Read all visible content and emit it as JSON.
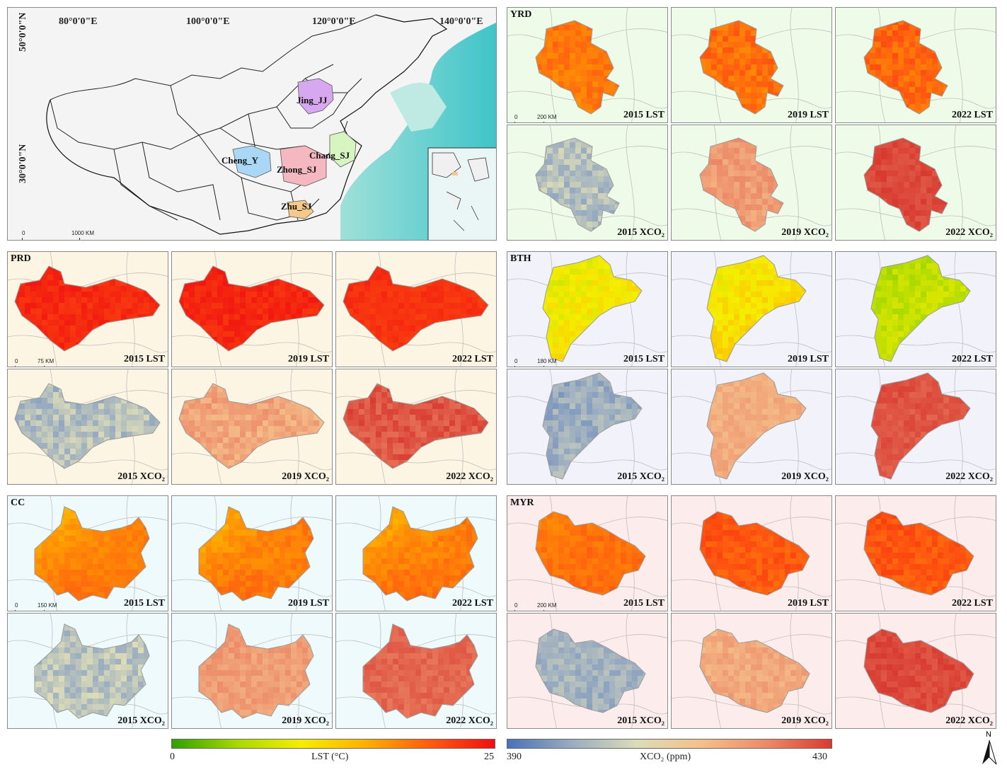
{
  "overview": {
    "lon_labels": [
      "80°0'0\"E",
      "100°0'0\"E",
      "120°0'0\"E",
      "140°0'0\"E"
    ],
    "lat_labels": [
      "50°0'0\"N",
      "30°0'0\"N"
    ],
    "scale": {
      "zero": "0",
      "dist": "1000 KM"
    },
    "cities": [
      {
        "name": "Jing_JJ",
        "color": "#d7a8f0"
      },
      {
        "name": "Chang_SJ",
        "color": "#d6f5c0"
      },
      {
        "name": "Cheng_Y",
        "color": "#a9d7f5"
      },
      {
        "name": "Zhong_SJ",
        "color": "#f5b8c0"
      },
      {
        "name": "Zhu_SJ",
        "color": "#f5c98a"
      }
    ]
  },
  "regions": [
    {
      "name": "YRD",
      "bg": "#eefbe8",
      "scale": "200 KM",
      "shape": "yrd",
      "maps": [
        {
          "label": "2015 LST",
          "kind": "lst",
          "base": 0.72,
          "var": 0.05,
          "zone": 0.78
        },
        {
          "label": "2019 LST",
          "kind": "lst",
          "base": 0.74,
          "var": 0.06,
          "zone": 0.8
        },
        {
          "label": "2022 LST",
          "kind": "lst",
          "base": 0.76,
          "var": 0.06,
          "zone": 0.82
        },
        {
          "label": "2015 XCO₂",
          "kind": "xco2",
          "base": 0.26,
          "var": 0.1,
          "zone": 0.38
        },
        {
          "label": "2019 XCO₂",
          "kind": "xco2",
          "base": 0.72,
          "var": 0.07,
          "zone": 0.78
        },
        {
          "label": "2022 XCO₂",
          "kind": "xco2",
          "base": 0.96,
          "var": 0.04,
          "zone": 0.98
        }
      ]
    },
    {
      "name": "PRD",
      "bg": "#fdf5e3",
      "scale": "75 KM",
      "shape": "prd",
      "maps": [
        {
          "label": "2015 LST",
          "kind": "lst",
          "base": 0.92,
          "var": 0.04,
          "zone": 0.97
        },
        {
          "label": "2019 LST",
          "kind": "lst",
          "base": 0.93,
          "var": 0.04,
          "zone": 0.98
        },
        {
          "label": "2022 LST",
          "kind": "lst",
          "base": 0.9,
          "var": 0.03,
          "zone": 0.94
        },
        {
          "label": "2015 XCO₂",
          "kind": "xco2",
          "base": 0.3,
          "var": 0.1,
          "zone": 0.22
        },
        {
          "label": "2019 XCO₂",
          "kind": "xco2",
          "base": 0.68,
          "var": 0.08,
          "zone": 0.76
        },
        {
          "label": "2022 XCO₂",
          "kind": "xco2",
          "base": 0.92,
          "var": 0.06,
          "zone": 0.97
        }
      ]
    },
    {
      "name": "BTH",
      "bg": "#f2f2fb",
      "scale": "180 KM",
      "shape": "bth",
      "maps": [
        {
          "label": "2015 LST",
          "kind": "lst",
          "base": 0.45,
          "var": 0.06,
          "zone": 0.2
        },
        {
          "label": "2019 LST",
          "kind": "lst",
          "base": 0.5,
          "var": 0.06,
          "zone": 0.22
        },
        {
          "label": "2022 LST",
          "kind": "lst",
          "base": 0.3,
          "var": 0.06,
          "zone": 0.12
        },
        {
          "label": "2015 XCO₂",
          "kind": "xco2",
          "base": 0.24,
          "var": 0.08,
          "zone": 0.12
        },
        {
          "label": "2019 XCO₂",
          "kind": "xco2",
          "base": 0.68,
          "var": 0.05,
          "zone": 0.62
        },
        {
          "label": "2022 XCO₂",
          "kind": "xco2",
          "base": 0.92,
          "var": 0.04,
          "zone": 0.98
        }
      ]
    },
    {
      "name": "CC",
      "bg": "#eefafb",
      "scale": "150 KM",
      "shape": "cc",
      "maps": [
        {
          "label": "2015 LST",
          "kind": "lst",
          "base": 0.78,
          "var": 0.03,
          "zone": 0.3
        },
        {
          "label": "2019 LST",
          "kind": "lst",
          "base": 0.78,
          "var": 0.04,
          "zone": 0.32
        },
        {
          "label": "2022 LST",
          "kind": "lst",
          "base": 0.79,
          "var": 0.04,
          "zone": 0.3
        },
        {
          "label": "2015 XCO₂",
          "kind": "xco2",
          "base": 0.32,
          "var": 0.1,
          "zone": 0.22
        },
        {
          "label": "2019 XCO₂",
          "kind": "xco2",
          "base": 0.72,
          "var": 0.06,
          "zone": 0.78
        },
        {
          "label": "2022 XCO₂",
          "kind": "xco2",
          "base": 0.88,
          "var": 0.04,
          "zone": 0.92
        }
      ]
    },
    {
      "name": "MYR",
      "bg": "#fcecec",
      "scale": "200 KM",
      "shape": "myr",
      "maps": [
        {
          "label": "2015 LST",
          "kind": "lst",
          "base": 0.78,
          "var": 0.04,
          "zone": 0.6
        },
        {
          "label": "2019 LST",
          "kind": "lst",
          "base": 0.8,
          "var": 0.05,
          "zone": 0.86
        },
        {
          "label": "2022 LST",
          "kind": "lst",
          "base": 0.8,
          "var": 0.05,
          "zone": 0.86
        },
        {
          "label": "2015 XCO₂",
          "kind": "xco2",
          "base": 0.22,
          "var": 0.07,
          "zone": 0.3
        },
        {
          "label": "2019 XCO₂",
          "kind": "xco2",
          "base": 0.7,
          "var": 0.06,
          "zone": 0.62
        },
        {
          "label": "2022 XCO₂",
          "kind": "xco2",
          "base": 0.96,
          "var": 0.04,
          "zone": 0.98
        }
      ]
    }
  ],
  "legend_lst": {
    "min": "0",
    "max": "25",
    "title": "LST (°C)",
    "colors": [
      "#2fa000",
      "#a8d800",
      "#f5ee00",
      "#ffb000",
      "#ff5a10",
      "#f01010"
    ]
  },
  "legend_xco2": {
    "min": "390",
    "max": "430",
    "title": "XCO₂ (ppm)",
    "colors": [
      "#4a72b8",
      "#9aacc0",
      "#dcdcb8",
      "#f5c08a",
      "#ec8a68",
      "#d83a30"
    ]
  },
  "north": "N"
}
